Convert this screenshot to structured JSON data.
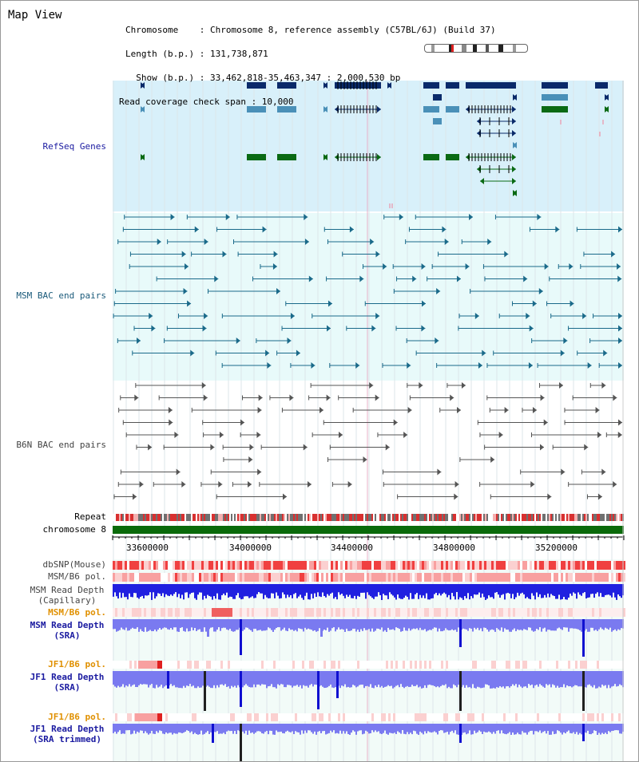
{
  "header": {
    "title": "Map View",
    "info_lines": [
      "Chromosome    : Chromosome 8, reference assembly (C57BL/6J) (Build 37)",
      "Length (b.p.) : 131,738,871",
      "  Show (b.p.) : 33,462,818-35,463,347 : 2,000,530 bp",
      "Read coverage check span : 10,000"
    ]
  },
  "tracks": {
    "refseq": "RefSeq Genes",
    "msm_bac": "MSM BAC end pairs",
    "b6n_bac": "B6N BAC end pairs",
    "repeat": "Repeat",
    "chromosome": "chromosome 8",
    "dbsnp": "dbSNP(Mouse)",
    "msm_b6_pol": "MSM/B6 pol.",
    "msm_depth_cap_1": "MSM Read Depth",
    "msm_depth_cap_2": "(Capillary)",
    "msm_b6_pol2": "MSM/B6 pol.",
    "msm_depth_sra_1": "MSM Read Depth",
    "msm_depth_sra_2": "(SRA)",
    "jf1_pol1": "JF1/B6 pol.",
    "jf1_depth_sra_1": "JF1 Read Depth",
    "jf1_depth_sra_2": "(SRA)",
    "jf1_pol2": "JF1/B6 pol.",
    "jf1_depth_trim_1": "JF1 Read Depth",
    "jf1_depth_trim_2": "(SRA trimmed)"
  },
  "axis": {
    "ticks": [
      "33600000",
      "34000000",
      "34400000",
      "34800000",
      "35200000"
    ]
  },
  "colors": {
    "refseq_bg": "#d8f0fa",
    "track_bg": "#e8fafa",
    "gene_dark": "#0a2a6a",
    "gene_mid": "#4a90b8",
    "gene_green": "#0a6a14",
    "msm_bac": "#1a6a8a",
    "b6n_bac": "#555555",
    "chromosome": "#0a6a0a",
    "capillary_depth": "#2020e0",
    "sra_depth": "#7a7af0",
    "polymorphism": "#f08080",
    "label_blue": "#1a1aa0",
    "label_teal": "#1a5a7a",
    "label_orange": "#e09000"
  }
}
